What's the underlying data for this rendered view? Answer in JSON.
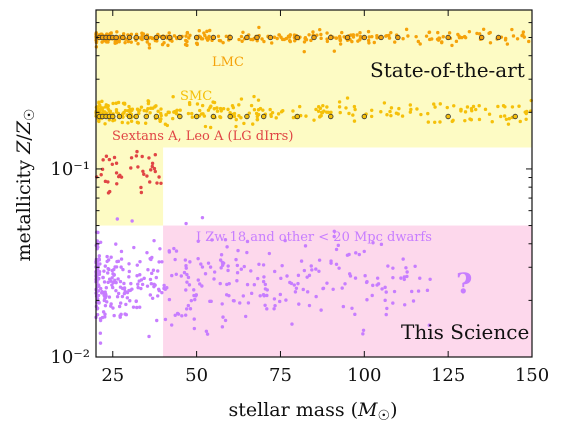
{
  "chart_data": {
    "type": "scatter",
    "xlabel": "stellar mass (M☉)",
    "ylabel": "metallicity Z/Z☉",
    "xlim": [
      20,
      150
    ],
    "ylim": [
      0.01,
      0.7
    ],
    "yscale": "log",
    "x_ticks": [
      {
        "value": 25,
        "label": "25"
      },
      {
        "value": 50,
        "label": "50"
      },
      {
        "value": 75,
        "label": "75"
      },
      {
        "value": 100,
        "label": "100"
      },
      {
        "value": 125,
        "label": "125"
      },
      {
        "value": 150,
        "label": "150"
      }
    ],
    "y_ticks": [
      {
        "value": 0.1,
        "label": "10⁻¹"
      },
      {
        "value": 0.01,
        "label": "10⁻²"
      }
    ],
    "grid": false,
    "regions": [
      {
        "name": "State-of-the-art",
        "label": "State-of-the-art",
        "color": "#fdfbc4",
        "x": [
          20,
          150
        ],
        "y": [
          0.13,
          0.7
        ]
      },
      {
        "name": "LG dIrrs",
        "label": "",
        "color": "#fdfbc4",
        "x": [
          20,
          40
        ],
        "y": [
          0.05,
          0.13
        ]
      },
      {
        "name": "This Science",
        "label": "This Science",
        "color": "#fdd8ec",
        "x": [
          40,
          150
        ],
        "y": [
          0.01,
          0.05
        ]
      }
    ],
    "annotations": [
      {
        "text": "LMC",
        "color": "#f5a20a"
      },
      {
        "text": "SMC",
        "color": "#f5c00a"
      },
      {
        "text": "Sextans A, Leo A (LG dIrrs)",
        "color": "#e04545"
      },
      {
        "text": "I Zw 18 and other < 20 Mpc dwarfs",
        "color": "#c77dff"
      },
      {
        "text": "?",
        "color": "#c77dff"
      }
    ],
    "series": [
      {
        "name": "LMC",
        "color": "#f5a20a",
        "z_center": 0.5,
        "z_spread": 0.03,
        "x_range": [
          20,
          150
        ]
      },
      {
        "name": "SMC",
        "color": "#f5c00a",
        "z_center": 0.2,
        "z_spread": 0.05,
        "x_range": [
          20,
          150
        ]
      },
      {
        "name": "LG dIrrs",
        "color": "#e04545",
        "z_center": 0.1,
        "z_spread": 0.13,
        "x_range": [
          20,
          40
        ]
      },
      {
        "name": "dwarfs",
        "color": "#c77dff",
        "z_center": 0.025,
        "z_spread": 0.18,
        "x_range": [
          20,
          120
        ]
      }
    ],
    "highlighted_points": {
      "LMC": [
        {
          "x": 21,
          "y": 0.5
        },
        {
          "x": 22,
          "y": 0.5
        },
        {
          "x": 23,
          "y": 0.5
        },
        {
          "x": 24,
          "y": 0.5
        },
        {
          "x": 25,
          "y": 0.5
        },
        {
          "x": 26,
          "y": 0.5
        },
        {
          "x": 28,
          "y": 0.5
        },
        {
          "x": 30,
          "y": 0.5
        },
        {
          "x": 32,
          "y": 0.5
        },
        {
          "x": 35,
          "y": 0.5
        },
        {
          "x": 38,
          "y": 0.5
        },
        {
          "x": 40,
          "y": 0.5
        },
        {
          "x": 42,
          "y": 0.5
        },
        {
          "x": 45,
          "y": 0.5
        },
        {
          "x": 50,
          "y": 0.5
        },
        {
          "x": 55,
          "y": 0.5
        },
        {
          "x": 60,
          "y": 0.5
        },
        {
          "x": 65,
          "y": 0.5
        },
        {
          "x": 68,
          "y": 0.5
        },
        {
          "x": 72,
          "y": 0.5
        },
        {
          "x": 80,
          "y": 0.5
        },
        {
          "x": 85,
          "y": 0.5
        },
        {
          "x": 90,
          "y": 0.5
        },
        {
          "x": 95,
          "y": 0.5
        },
        {
          "x": 100,
          "y": 0.5
        },
        {
          "x": 105,
          "y": 0.5
        },
        {
          "x": 110,
          "y": 0.5
        },
        {
          "x": 125,
          "y": 0.5
        },
        {
          "x": 135,
          "y": 0.5
        },
        {
          "x": 140,
          "y": 0.5
        }
      ],
      "SMC": [
        {
          "x": 21,
          "y": 0.19
        },
        {
          "x": 22,
          "y": 0.19
        },
        {
          "x": 23,
          "y": 0.19
        },
        {
          "x": 24,
          "y": 0.19
        },
        {
          "x": 25,
          "y": 0.19
        },
        {
          "x": 27,
          "y": 0.19
        },
        {
          "x": 30,
          "y": 0.19
        },
        {
          "x": 32,
          "y": 0.19
        },
        {
          "x": 35,
          "y": 0.19
        },
        {
          "x": 38,
          "y": 0.19
        },
        {
          "x": 45,
          "y": 0.19
        },
        {
          "x": 50,
          "y": 0.19
        },
        {
          "x": 55,
          "y": 0.19
        },
        {
          "x": 60,
          "y": 0.19
        },
        {
          "x": 65,
          "y": 0.19
        },
        {
          "x": 70,
          "y": 0.19
        },
        {
          "x": 80,
          "y": 0.19
        },
        {
          "x": 90,
          "y": 0.19
        },
        {
          "x": 100,
          "y": 0.19
        },
        {
          "x": 125,
          "y": 0.19
        },
        {
          "x": 145,
          "y": 0.19
        }
      ]
    }
  }
}
